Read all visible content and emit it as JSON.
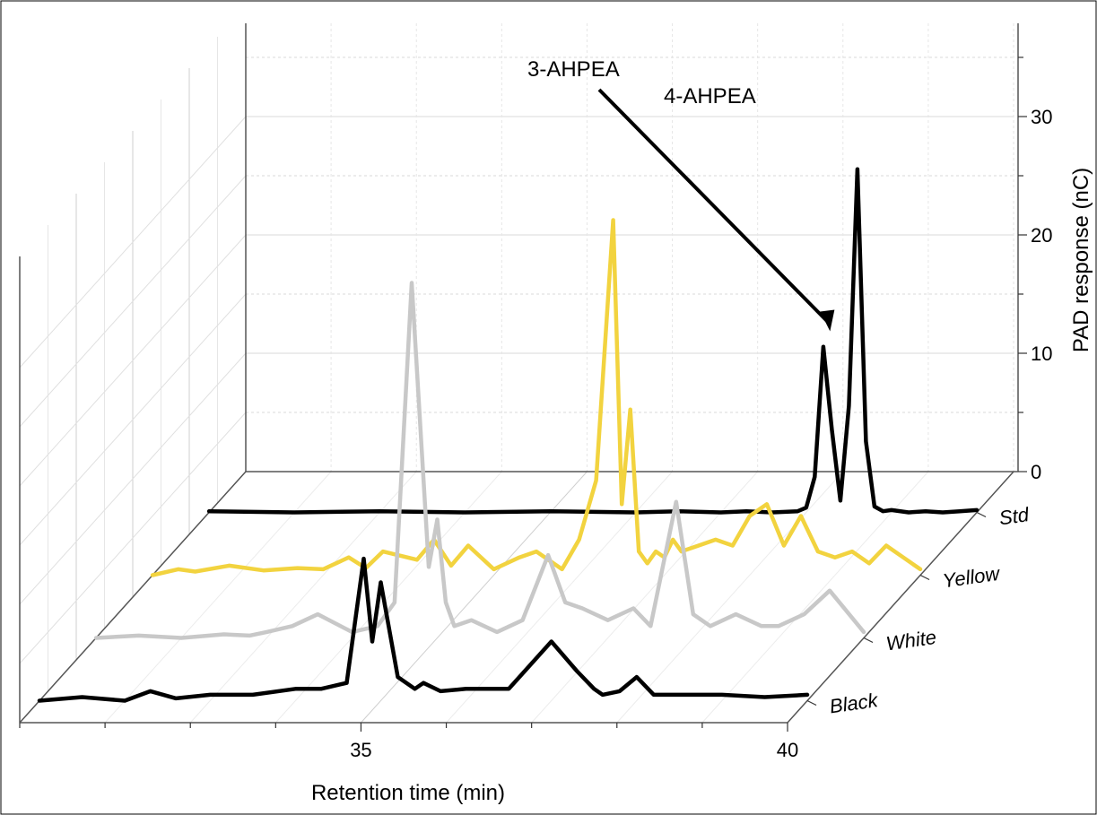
{
  "chart_data": {
    "type": "line",
    "style": "3d-waterfall",
    "xlabel": "Retention time (min)",
    "ylabel": "PAD response (nC)",
    "x_ticks": [
      "35",
      "40"
    ],
    "y_ticks": [
      "0",
      "10",
      "20",
      "30"
    ],
    "xlim": [
      31,
      40
    ],
    "ylim": [
      0,
      30
    ],
    "annotations": [
      {
        "text": "3-AHPEA",
        "x": 38.3,
        "y": 15
      },
      {
        "text": "4-AHPEA",
        "x": 38.6,
        "y": 28
      }
    ],
    "series": [
      {
        "name": "Std",
        "color": "#000000",
        "x": [
          31.0,
          32.0,
          33.0,
          34.0,
          35.0,
          36.0,
          36.5,
          37.0,
          37.3,
          37.6,
          37.9,
          38.0,
          38.1,
          38.2,
          38.3,
          38.4,
          38.5,
          38.6,
          38.7,
          38.8,
          38.9,
          39.0,
          39.2,
          39.4,
          39.6,
          39.8,
          40.0
        ],
        "y": [
          0.1,
          0.0,
          0.1,
          0.0,
          0.1,
          0.0,
          0.1,
          0.0,
          0.1,
          0.0,
          0.1,
          0.4,
          3.0,
          14.0,
          7.0,
          1.0,
          9.0,
          29.0,
          6.0,
          0.5,
          0.1,
          0.2,
          0.0,
          0.1,
          0.0,
          0.1,
          0.2
        ]
      },
      {
        "name": "Yellow",
        "color": "#f2d33f",
        "x": [
          31.0,
          31.3,
          31.5,
          31.9,
          32.3,
          32.7,
          33.0,
          33.3,
          33.5,
          33.7,
          34.1,
          34.3,
          34.5,
          34.7,
          35.0,
          35.3,
          35.5,
          35.8,
          36.0,
          36.2,
          36.4,
          36.5,
          36.6,
          36.7,
          36.8,
          36.9,
          37.0,
          37.1,
          37.2,
          37.4,
          37.6,
          37.8,
          38.0,
          38.2,
          38.4,
          38.6,
          38.8,
          39.0,
          39.2,
          39.4,
          39.6,
          39.8,
          40.0
        ],
        "y": [
          0.0,
          0.5,
          0.3,
          0.8,
          0.4,
          0.6,
          0.5,
          1.5,
          0.6,
          2.0,
          1.3,
          3.0,
          0.8,
          2.5,
          0.5,
          1.5,
          2.0,
          0.5,
          3.0,
          8.0,
          30.0,
          6.0,
          14.0,
          2.0,
          1.0,
          2.0,
          1.5,
          3.0,
          2.0,
          2.5,
          3.0,
          2.5,
          5.0,
          6.0,
          2.5,
          5.0,
          2.0,
          1.5,
          2.0,
          1.0,
          2.5,
          1.5,
          0.5
        ]
      },
      {
        "name": "White",
        "color": "#c8c8c8",
        "x": [
          31.0,
          31.5,
          32.0,
          32.5,
          32.8,
          33.0,
          33.3,
          33.6,
          34.0,
          34.3,
          34.5,
          34.7,
          34.9,
          35.0,
          35.1,
          35.2,
          35.4,
          35.7,
          36.0,
          36.3,
          36.5,
          36.7,
          37.0,
          37.3,
          37.5,
          37.8,
          38.0,
          38.2,
          38.5,
          38.8,
          39.0,
          39.3,
          39.6,
          40.0
        ],
        "y": [
          0.0,
          0.2,
          0.0,
          0.3,
          0.2,
          0.5,
          1.0,
          2.0,
          0.5,
          1.0,
          3.0,
          30.0,
          6.0,
          10.0,
          3.0,
          1.0,
          1.5,
          0.5,
          1.5,
          7.0,
          3.0,
          2.5,
          1.5,
          2.5,
          1.0,
          11.5,
          2.0,
          1.0,
          2.0,
          1.0,
          1.0,
          2.0,
          4.0,
          0.5
        ]
      },
      {
        "name": "Black",
        "color": "#000000",
        "x": [
          31.0,
          31.5,
          32.0,
          32.3,
          32.6,
          33.0,
          33.5,
          34.0,
          34.3,
          34.6,
          34.8,
          34.9,
          35.0,
          35.2,
          35.4,
          35.5,
          35.7,
          36.0,
          36.5,
          37.0,
          37.3,
          37.5,
          37.6,
          37.8,
          38.0,
          38.2,
          38.5,
          39.0,
          39.5,
          40.0
        ],
        "y": [
          0.0,
          0.3,
          0.0,
          0.8,
          0.2,
          0.5,
          0.5,
          1.0,
          1.0,
          1.5,
          12.0,
          5.0,
          10.0,
          2.0,
          1.0,
          1.5,
          0.8,
          1.0,
          1.0,
          5.0,
          2.5,
          1.0,
          0.5,
          0.8,
          2.0,
          0.5,
          0.5,
          0.5,
          0.3,
          0.5
        ]
      }
    ]
  }
}
